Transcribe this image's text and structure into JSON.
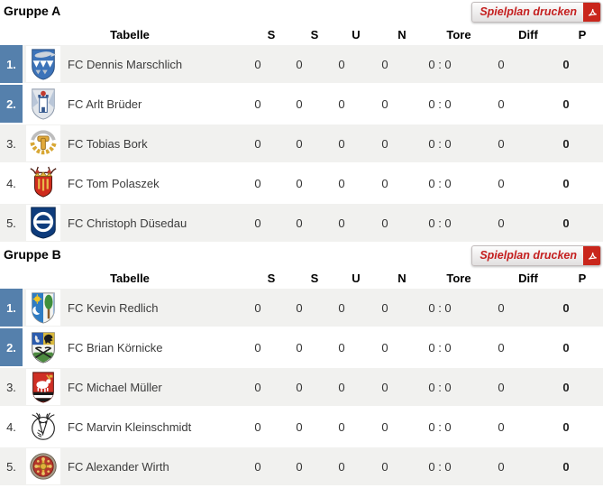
{
  "colors": {
    "highlight_blue": "#5580ac",
    "row_stripe": "#f1f1ef",
    "button_red": "#c41e1e",
    "pdf_badge_red": "#c9261c"
  },
  "print_button": {
    "label": "Spielplan drucken",
    "icon": "pdf-icon"
  },
  "columns": {
    "tabelle": "Tabelle",
    "c1": "S",
    "c2": "S",
    "c3": "U",
    "c4": "N",
    "c5": "Tore",
    "c6": "Diff",
    "c7": "P"
  },
  "groups": [
    {
      "title": "Gruppe A",
      "rows": [
        {
          "pos": "1.",
          "highlight": true,
          "crest": "crest-fish-blue",
          "team": "FC Dennis Marschlich",
          "sp": "0",
          "s": "0",
          "u": "0",
          "n": "0",
          "tore": "0 : 0",
          "diff": "0",
          "p": "0"
        },
        {
          "pos": "2.",
          "highlight": true,
          "crest": "crest-tower",
          "team": "FC Arlt Brüder",
          "sp": "0",
          "s": "0",
          "u": "0",
          "n": "0",
          "tore": "0 : 0",
          "diff": "0",
          "p": "0"
        },
        {
          "pos": "3.",
          "highlight": false,
          "crest": "crest-wreath-hammer",
          "team": "FC Tobias Bork",
          "sp": "0",
          "s": "0",
          "u": "0",
          "n": "0",
          "tore": "0 : 0",
          "diff": "0",
          "p": "0"
        },
        {
          "pos": "4.",
          "highlight": false,
          "crest": "crest-antler-red",
          "team": "FC Tom Polaszek",
          "sp": "0",
          "s": "0",
          "u": "0",
          "n": "0",
          "tore": "0 : 0",
          "diff": "0",
          "p": "0"
        },
        {
          "pos": "5.",
          "highlight": false,
          "crest": "crest-theta-blue",
          "team": "FC Christoph Düsedau",
          "sp": "0",
          "s": "0",
          "u": "0",
          "n": "0",
          "tore": "0 : 0",
          "diff": "0",
          "p": "0"
        }
      ]
    },
    {
      "title": "Gruppe B",
      "rows": [
        {
          "pos": "1.",
          "highlight": true,
          "crest": "crest-sun-moon-tree",
          "team": "FC Kevin Redlich",
          "sp": "0",
          "s": "0",
          "u": "0",
          "n": "0",
          "tore": "0 : 0",
          "diff": "0",
          "p": "0"
        },
        {
          "pos": "2.",
          "highlight": true,
          "crest": "crest-eagle-scythes",
          "team": "FC Brian Körnicke",
          "sp": "0",
          "s": "0",
          "u": "0",
          "n": "0",
          "tore": "0 : 0",
          "diff": "0",
          "p": "0"
        },
        {
          "pos": "3.",
          "highlight": false,
          "crest": "crest-lamb-red",
          "team": "FC Michael Müller",
          "sp": "0",
          "s": "0",
          "u": "0",
          "n": "0",
          "tore": "0 : 0",
          "diff": "0",
          "p": "0"
        },
        {
          "pos": "4.",
          "highlight": false,
          "crest": "crest-stag-circle",
          "team": "FC Marvin Kleinschmidt",
          "sp": "0",
          "s": "0",
          "u": "0",
          "n": "0",
          "tore": "0 : 0",
          "diff": "0",
          "p": "0"
        },
        {
          "pos": "5.",
          "highlight": false,
          "crest": "crest-ornate-round",
          "team": "FC Alexander Wirth",
          "sp": "0",
          "s": "0",
          "u": "0",
          "n": "0",
          "tore": "0 : 0",
          "diff": "0",
          "p": "0"
        }
      ]
    }
  ]
}
